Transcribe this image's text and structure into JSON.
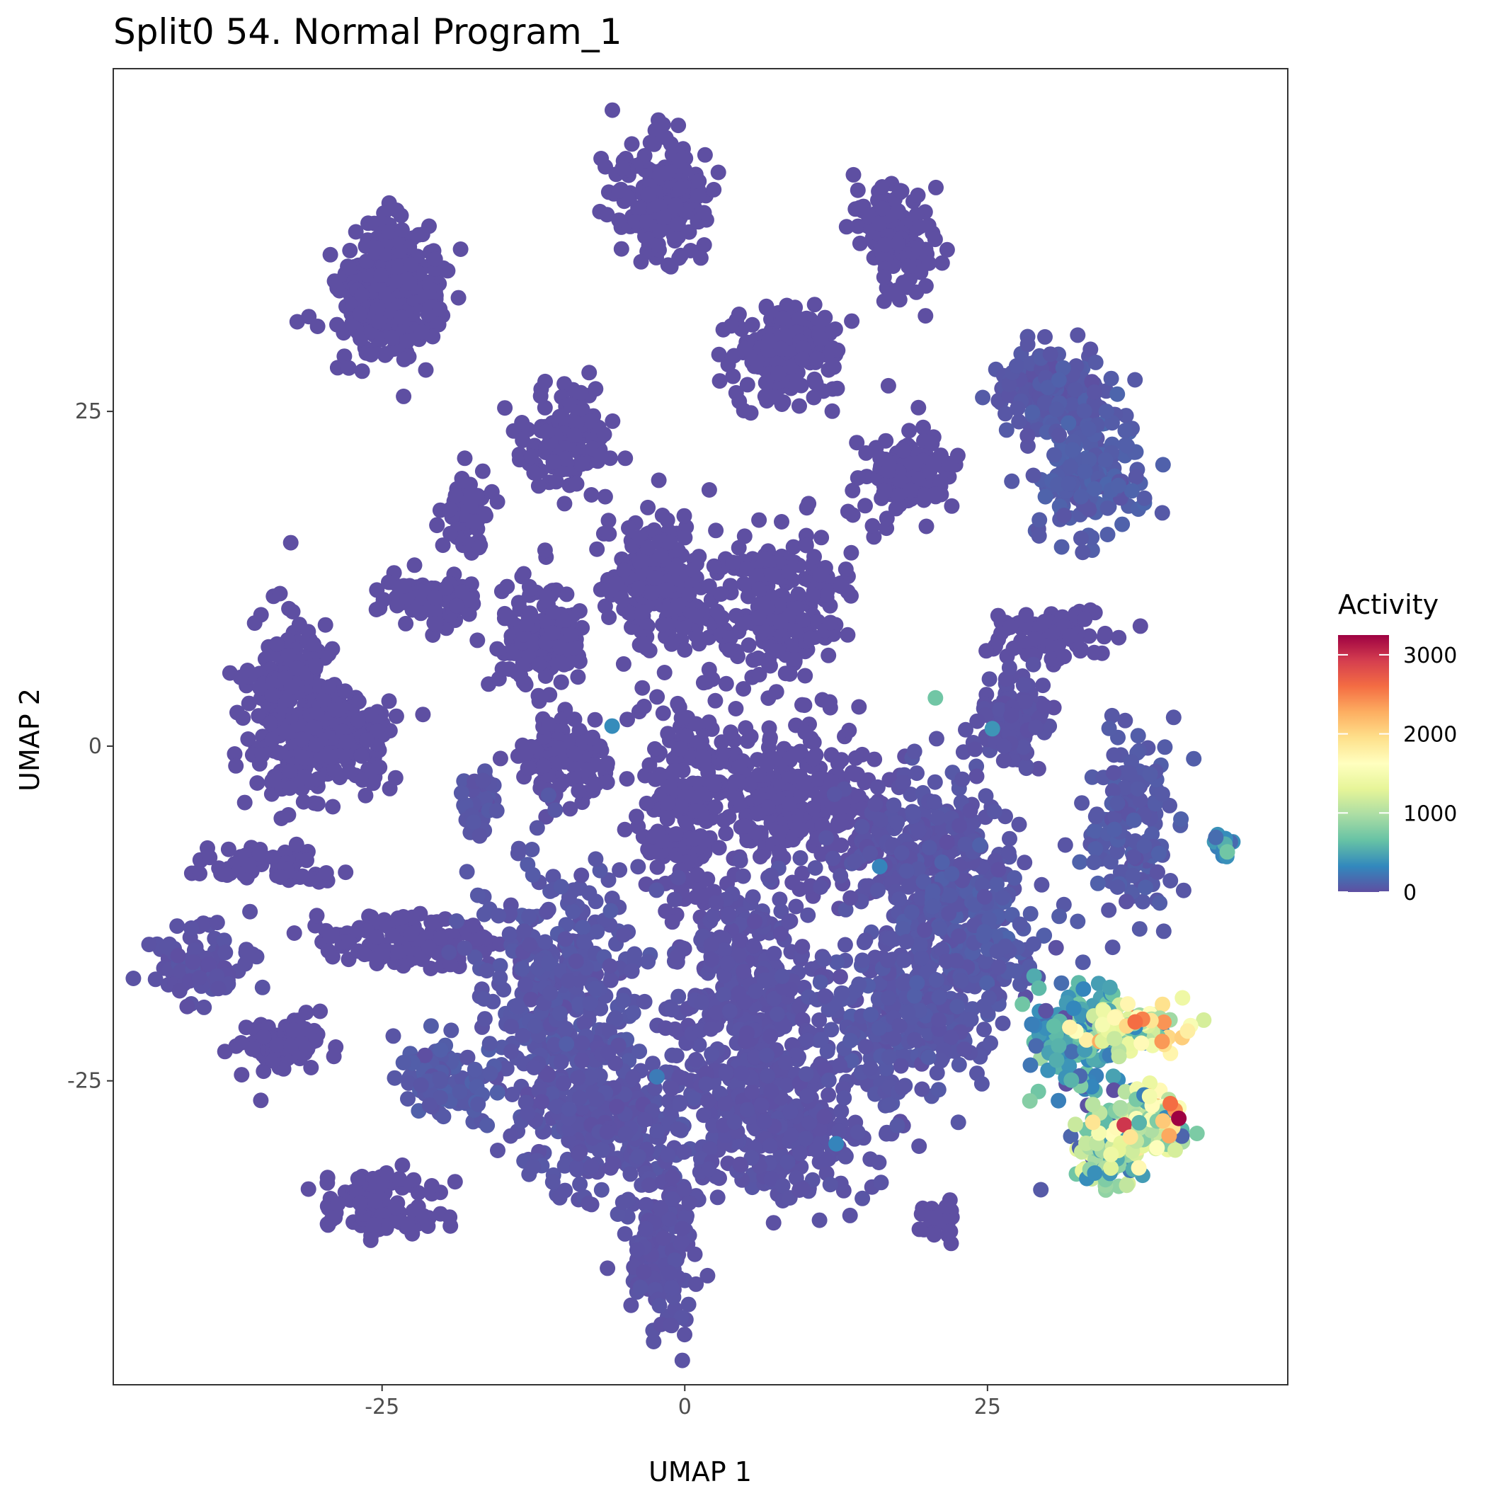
{
  "chart_data": {
    "type": "scatter",
    "title": "Split0 54. Normal Program_1",
    "xlabel": "UMAP 1",
    "ylabel": "UMAP 2",
    "xlim": [
      -47.2,
      49.8
    ],
    "ylim": [
      -47.7,
      50.6
    ],
    "x_ticks": [
      -25,
      0,
      25
    ],
    "x_tick_labels": [
      "-25",
      "0",
      "25"
    ],
    "y_ticks": [
      25,
      0,
      -25
    ],
    "y_tick_labels": [
      "25",
      "0",
      "-25"
    ],
    "grid": false,
    "color_scale": {
      "name": "Activity",
      "palette": "Spectral (reversed)",
      "min": 0,
      "max": 3250,
      "ticks": [
        3000,
        2000,
        1000,
        0
      ],
      "tick_labels": [
        "3000",
        "2000",
        "1000",
        "0"
      ],
      "stops": [
        "#5E4FA2",
        "#3288BD",
        "#66C2A5",
        "#ABDDA4",
        "#E6F598",
        "#FFFFBF",
        "#FEE08B",
        "#FDAE61",
        "#F46D43",
        "#D53E4F",
        "#9E0142"
      ]
    },
    "legend_position": "right",
    "clusters": [
      {
        "x": -24.5,
        "y": 33.5,
        "sx": 3.2,
        "sy": 3.2,
        "n": 260,
        "activity": 0
      },
      {
        "x": -24.0,
        "y": 37.0,
        "sx": 1.5,
        "sy": 2.0,
        "n": 60,
        "activity": 0
      },
      {
        "x": -2.0,
        "y": 41.0,
        "sx": 2.6,
        "sy": 3.2,
        "n": 200,
        "activity": 0
      },
      {
        "x": 17.5,
        "y": 38.0,
        "sx": 2.0,
        "sy": 2.6,
        "n": 130,
        "activity": 0
      },
      {
        "x": 8.5,
        "y": 29.5,
        "sx": 3.5,
        "sy": 2.5,
        "n": 180,
        "activity": 0
      },
      {
        "x": 30.0,
        "y": 27.0,
        "sx": 3.2,
        "sy": 2.3,
        "n": 140,
        "activity": 50
      },
      {
        "x": 33.5,
        "y": 20.5,
        "sx": 3.0,
        "sy": 3.5,
        "n": 170,
        "activity": 80
      },
      {
        "x": -10.0,
        "y": 23.0,
        "sx": 2.3,
        "sy": 2.5,
        "n": 140,
        "activity": 0
      },
      {
        "x": 18.5,
        "y": 20.5,
        "sx": 2.4,
        "sy": 2.4,
        "n": 130,
        "activity": 0
      },
      {
        "x": -18.0,
        "y": 17.5,
        "sx": 1.5,
        "sy": 2.0,
        "n": 60,
        "activity": 0
      },
      {
        "x": -21.0,
        "y": 11.0,
        "sx": 2.8,
        "sy": 1.4,
        "n": 90,
        "activity": 0
      },
      {
        "x": -32.5,
        "y": 3.0,
        "sx": 2.5,
        "sy": 4.5,
        "n": 240,
        "activity": 0
      },
      {
        "x": -28.5,
        "y": 0.5,
        "sx": 3.0,
        "sy": 2.5,
        "n": 160,
        "activity": 0
      },
      {
        "x": -12.0,
        "y": 8.0,
        "sx": 2.6,
        "sy": 2.6,
        "n": 150,
        "activity": 0
      },
      {
        "x": -2.0,
        "y": 12.0,
        "sx": 3.0,
        "sy": 3.2,
        "n": 200,
        "activity": 0
      },
      {
        "x": 8.0,
        "y": 10.0,
        "sx": 3.5,
        "sy": 3.5,
        "n": 230,
        "activity": 0
      },
      {
        "x": 30.0,
        "y": 8.0,
        "sx": 3.2,
        "sy": 1.4,
        "n": 90,
        "activity": 0
      },
      {
        "x": 27.0,
        "y": 2.0,
        "sx": 2.0,
        "sy": 2.5,
        "n": 100,
        "activity": 20
      },
      {
        "x": -17.0,
        "y": -4.0,
        "sx": 1.0,
        "sy": 1.5,
        "n": 40,
        "activity": 40
      },
      {
        "x": -10.0,
        "y": -1.0,
        "sx": 2.5,
        "sy": 2.0,
        "n": 110,
        "activity": 0
      },
      {
        "x": 0.5,
        "y": -4.0,
        "sx": 3.0,
        "sy": 5.5,
        "n": 240,
        "activity": 0
      },
      {
        "x": 10.0,
        "y": -4.0,
        "sx": 4.5,
        "sy": 4.0,
        "n": 260,
        "activity": 0
      },
      {
        "x": 20.0,
        "y": -8.0,
        "sx": 4.5,
        "sy": 4.0,
        "n": 260,
        "activity": 30
      },
      {
        "x": 37.0,
        "y": -6.0,
        "sx": 2.5,
        "sy": 4.5,
        "n": 160,
        "activity": 60
      },
      {
        "x": -34.0,
        "y": -9.0,
        "sx": 4.0,
        "sy": 1.0,
        "n": 80,
        "activity": 0
      },
      {
        "x": -22.0,
        "y": -14.5,
        "sx": 6.0,
        "sy": 1.4,
        "n": 160,
        "activity": 0
      },
      {
        "x": -40.0,
        "y": -16.5,
        "sx": 2.6,
        "sy": 1.8,
        "n": 90,
        "activity": 20
      },
      {
        "x": -33.0,
        "y": -22.0,
        "sx": 2.2,
        "sy": 1.4,
        "n": 80,
        "activity": 0
      },
      {
        "x": -10.0,
        "y": -18.0,
        "sx": 4.5,
        "sy": 5.5,
        "n": 320,
        "activity": 40
      },
      {
        "x": -6.0,
        "y": -28.0,
        "sx": 5.0,
        "sy": 4.0,
        "n": 300,
        "activity": 30
      },
      {
        "x": 5.0,
        "y": -18.0,
        "sx": 4.0,
        "sy": 5.0,
        "n": 300,
        "activity": 20
      },
      {
        "x": 8.0,
        "y": -28.0,
        "sx": 5.0,
        "sy": 4.0,
        "n": 300,
        "activity": 20
      },
      {
        "x": 18.0,
        "y": -20.0,
        "sx": 5.0,
        "sy": 4.5,
        "n": 300,
        "activity": 40
      },
      {
        "x": 24.0,
        "y": -14.0,
        "sx": 4.0,
        "sy": 3.5,
        "n": 200,
        "activity": 60
      },
      {
        "x": -20.0,
        "y": -25.0,
        "sx": 2.5,
        "sy": 2.0,
        "n": 100,
        "activity": 60
      },
      {
        "x": -25.0,
        "y": -34.0,
        "sx": 3.0,
        "sy": 1.8,
        "n": 110,
        "activity": 0
      },
      {
        "x": -2.0,
        "y": -38.0,
        "sx": 2.0,
        "sy": 4.0,
        "n": 150,
        "activity": 20
      },
      {
        "x": 21.0,
        "y": -35.5,
        "sx": 1.0,
        "sy": 1.0,
        "n": 25,
        "activity": 0
      },
      {
        "x": 44.5,
        "y": -7.5,
        "sx": 0.7,
        "sy": 0.8,
        "n": 15,
        "activity": 300
      },
      {
        "x": 32.0,
        "y": -22.0,
        "sx": 2.5,
        "sy": 3.0,
        "n": 120,
        "activity": 450
      },
      {
        "x": 37.0,
        "y": -21.0,
        "sx": 2.5,
        "sy": 1.2,
        "n": 110,
        "activity": 1300
      },
      {
        "x": 35.0,
        "y": -30.0,
        "sx": 2.0,
        "sy": 2.0,
        "n": 110,
        "activity": 800
      },
      {
        "x": 38.5,
        "y": -28.0,
        "sx": 2.0,
        "sy": 1.5,
        "n": 100,
        "activity": 1200
      }
    ],
    "highlights": [
      {
        "x": 37.2,
        "y": -20.6,
        "activity": 2600
      },
      {
        "x": 37.8,
        "y": -20.4,
        "activity": 2500
      },
      {
        "x": 36.5,
        "y": -20.9,
        "activity": 2000
      },
      {
        "x": 38.5,
        "y": -20.5,
        "activity": 1900
      },
      {
        "x": 35.5,
        "y": -20.3,
        "activity": 1700
      },
      {
        "x": 31.8,
        "y": -21.0,
        "activity": 1750
      },
      {
        "x": 32.3,
        "y": -21.3,
        "activity": 1650
      },
      {
        "x": 34.5,
        "y": -20.8,
        "activity": 1500
      },
      {
        "x": 40.1,
        "y": -26.7,
        "activity": 2600
      },
      {
        "x": 40.5,
        "y": -27.2,
        "activity": 2400
      },
      {
        "x": 40.8,
        "y": -27.8,
        "activity": 3300
      },
      {
        "x": 40.0,
        "y": -29.1,
        "activity": 2300
      },
      {
        "x": 40.3,
        "y": -28.5,
        "activity": 1900
      },
      {
        "x": 39.5,
        "y": -28.0,
        "activity": 2100
      },
      {
        "x": 36.8,
        "y": -29.2,
        "activity": 1900
      },
      {
        "x": 33.7,
        "y": -28.1,
        "activity": 1900
      },
      {
        "x": 37.5,
        "y": -31.5,
        "activity": 1700
      },
      {
        "x": 39.0,
        "y": -30.0,
        "activity": 1600
      },
      {
        "x": 35.2,
        "y": -30.5,
        "activity": 1400
      },
      {
        "x": 34.2,
        "y": -28.9,
        "activity": 1500
      },
      {
        "x": 36.5,
        "y": -32.8,
        "activity": 1100
      },
      {
        "x": 35.8,
        "y": -30.2,
        "activity": 1300
      },
      {
        "x": 44.8,
        "y": -7.9,
        "activity": 700
      },
      {
        "x": 20.7,
        "y": 3.6,
        "activity": 700
      },
      {
        "x": -6.0,
        "y": 1.5,
        "activity": 350
      },
      {
        "x": 25.4,
        "y": 1.3,
        "activity": 400
      },
      {
        "x": 16.1,
        "y": -9.0,
        "activity": 300
      },
      {
        "x": 12.5,
        "y": -29.7,
        "activity": 300
      },
      {
        "x": -2.3,
        "y": -24.7,
        "activity": 250
      },
      {
        "x": 28.5,
        "y": -26.5,
        "activity": 800
      },
      {
        "x": 29.2,
        "y": -25.8,
        "activity": 700
      }
    ]
  }
}
